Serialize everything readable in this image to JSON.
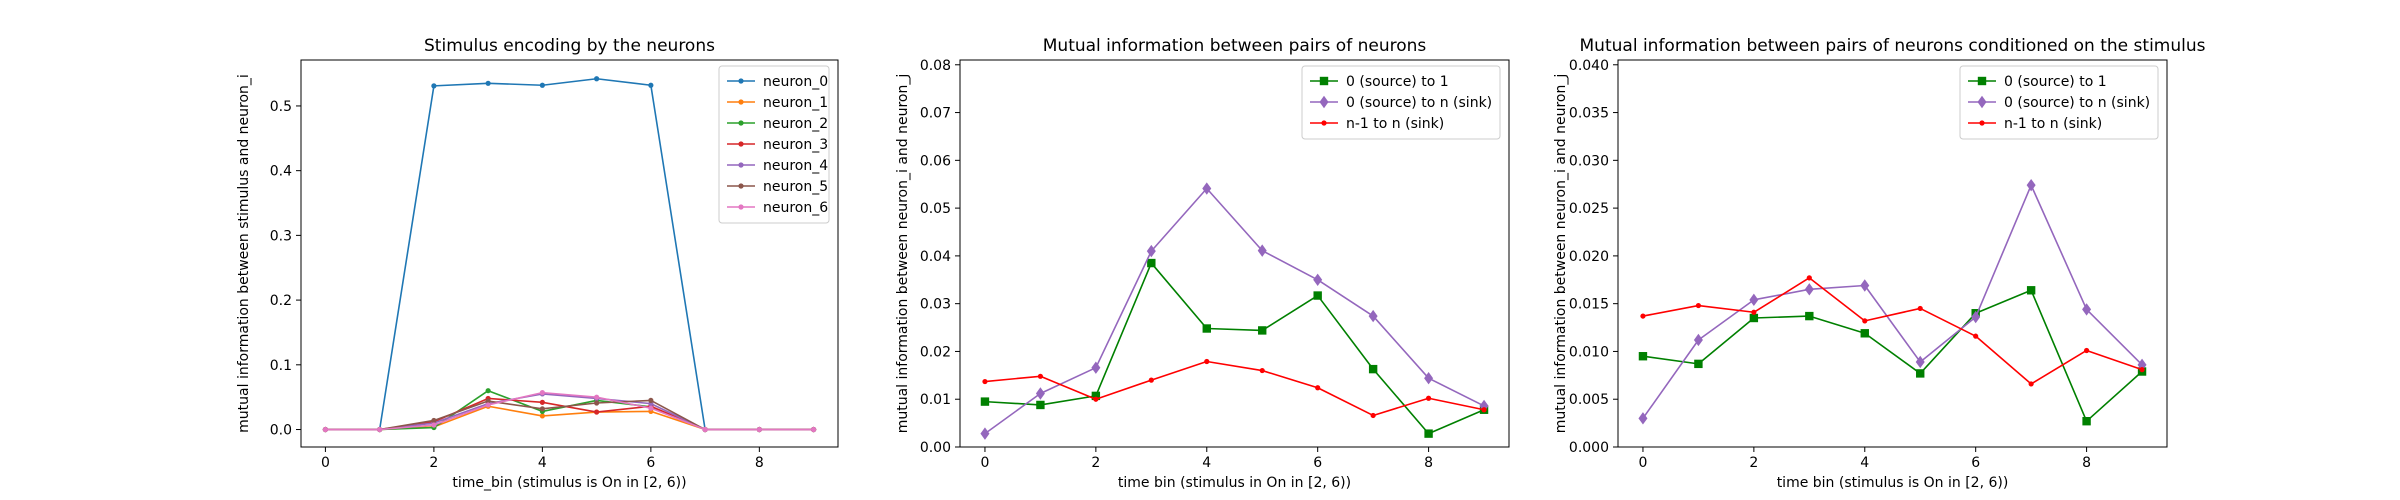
{
  "chart_data": [
    {
      "type": "line",
      "title": "Stimulus encoding by the neurons",
      "xlabel": "time_bin (stimulus is On in [2, 6))",
      "ylabel": "mutual information between stimulus and neuron_i",
      "xlim": [
        -0.45,
        9.45
      ],
      "ylim": [
        -0.027,
        0.571
      ],
      "xticks": [
        0,
        2,
        4,
        6,
        8
      ],
      "yticks": [
        0.0,
        0.1,
        0.2,
        0.3,
        0.4,
        0.5
      ],
      "ytick_labels": [
        "0.0",
        "0.1",
        "0.2",
        "0.3",
        "0.4",
        "0.5"
      ],
      "grid": false,
      "legend": "top-right",
      "x": [
        0,
        1,
        2,
        3,
        4,
        5,
        6,
        7,
        8,
        9
      ],
      "series": [
        {
          "name": "neuron_0",
          "color": "#1f77b4",
          "marker": "dot",
          "values": [
            0.0,
            0.0,
            0.531,
            0.535,
            0.532,
            0.542,
            0.532,
            0.0,
            0.0,
            0.0
          ]
        },
        {
          "name": "neuron_1",
          "color": "#ff7f0e",
          "marker": "dot",
          "values": [
            0.0,
            0.0,
            0.004,
            0.036,
            0.021,
            0.027,
            0.028,
            0.0,
            0.0,
            0.0
          ]
        },
        {
          "name": "neuron_2",
          "color": "#2ca02c",
          "marker": "dot",
          "values": [
            0.0,
            0.0,
            0.003,
            0.06,
            0.028,
            0.045,
            0.035,
            0.0,
            0.0,
            0.0
          ]
        },
        {
          "name": "neuron_3",
          "color": "#d62728",
          "marker": "dot",
          "values": [
            0.0,
            0.0,
            0.012,
            0.048,
            0.042,
            0.027,
            0.036,
            0.0,
            0.0,
            0.0
          ]
        },
        {
          "name": "neuron_4",
          "color": "#9467bd",
          "marker": "dot",
          "values": [
            0.0,
            0.0,
            0.01,
            0.04,
            0.055,
            0.048,
            0.04,
            0.0,
            0.0,
            0.0
          ]
        },
        {
          "name": "neuron_5",
          "color": "#8c564b",
          "marker": "dot",
          "values": [
            0.0,
            0.0,
            0.014,
            0.044,
            0.032,
            0.041,
            0.045,
            0.0,
            0.0,
            0.0
          ]
        },
        {
          "name": "neuron_6",
          "color": "#e377c2",
          "marker": "dot",
          "values": [
            0.0,
            0.0,
            0.007,
            0.038,
            0.057,
            0.05,
            0.033,
            0.0,
            0.0,
            0.0
          ]
        }
      ]
    },
    {
      "type": "line",
      "title": "Mutual information between pairs of neurons",
      "xlabel": "time bin (stimulus in On in [2, 6))",
      "ylabel": "mutual information between neuron_i and neuron_j",
      "xlim": [
        -0.45,
        9.45
      ],
      "ylim": [
        0.0,
        0.081
      ],
      "xticks": [
        0,
        2,
        4,
        6,
        8
      ],
      "yticks": [
        0.0,
        0.01,
        0.02,
        0.03,
        0.04,
        0.05,
        0.06,
        0.07,
        0.08
      ],
      "ytick_labels": [
        "0.00",
        "0.01",
        "0.02",
        "0.03",
        "0.04",
        "0.05",
        "0.06",
        "0.07",
        "0.08"
      ],
      "grid": false,
      "legend": "top-right",
      "x": [
        0,
        1,
        2,
        3,
        4,
        5,
        6,
        7,
        8,
        9
      ],
      "series": [
        {
          "name": "0 (source) to 1",
          "color": "#008000",
          "marker": "square",
          "values": [
            0.0095,
            0.0088,
            0.0107,
            0.0385,
            0.0248,
            0.0244,
            0.0317,
            0.0163,
            0.0028,
            0.0078
          ]
        },
        {
          "name": "0 (source) to n (sink)",
          "color": "#9467bd",
          "marker": "diamond",
          "values": [
            0.0028,
            0.0112,
            0.0166,
            0.041,
            0.0541,
            0.0411,
            0.035,
            0.0274,
            0.0144,
            0.0086
          ]
        },
        {
          "name": "n-1 to n (sink)",
          "color": "#ff0000",
          "marker": "dot",
          "values": [
            0.0137,
            0.0148,
            0.01,
            0.014,
            0.0179,
            0.016,
            0.0124,
            0.0066,
            0.0102,
            0.0078
          ]
        }
      ]
    },
    {
      "type": "line",
      "title": "Mutual information between pairs of neurons conditioned on the stimulus",
      "xlabel": "time bin (stimulus is On in [2, 6))",
      "ylabel": "mutual information between neuron_i and neuron_j",
      "xlim": [
        -0.45,
        9.45
      ],
      "ylim": [
        0.0,
        0.0405
      ],
      "xticks": [
        0,
        2,
        4,
        6,
        8
      ],
      "yticks": [
        0.0,
        0.005,
        0.01,
        0.015,
        0.02,
        0.025,
        0.03,
        0.035,
        0.04
      ],
      "ytick_labels": [
        "0.000",
        "0.005",
        "0.010",
        "0.015",
        "0.020",
        "0.025",
        "0.030",
        "0.035",
        "0.040"
      ],
      "grid": false,
      "legend": "top-right",
      "x": [
        0,
        1,
        2,
        3,
        4,
        5,
        6,
        7,
        8,
        9
      ],
      "series": [
        {
          "name": "0 (source) to 1",
          "color": "#008000",
          "marker": "square",
          "values": [
            0.0095,
            0.0087,
            0.0135,
            0.0137,
            0.0119,
            0.0077,
            0.014,
            0.0164,
            0.0027,
            0.0079
          ]
        },
        {
          "name": "0 (source) to n (sink)",
          "color": "#9467bd",
          "marker": "diamond",
          "values": [
            0.003,
            0.0112,
            0.0154,
            0.0165,
            0.0169,
            0.0089,
            0.0136,
            0.0274,
            0.0144,
            0.0086
          ]
        },
        {
          "name": "n-1 to n (sink)",
          "color": "#ff0000",
          "marker": "dot",
          "values": [
            0.0137,
            0.0148,
            0.0141,
            0.0177,
            0.0132,
            0.0145,
            0.0116,
            0.0066,
            0.0101,
            0.0081
          ]
        }
      ]
    }
  ]
}
